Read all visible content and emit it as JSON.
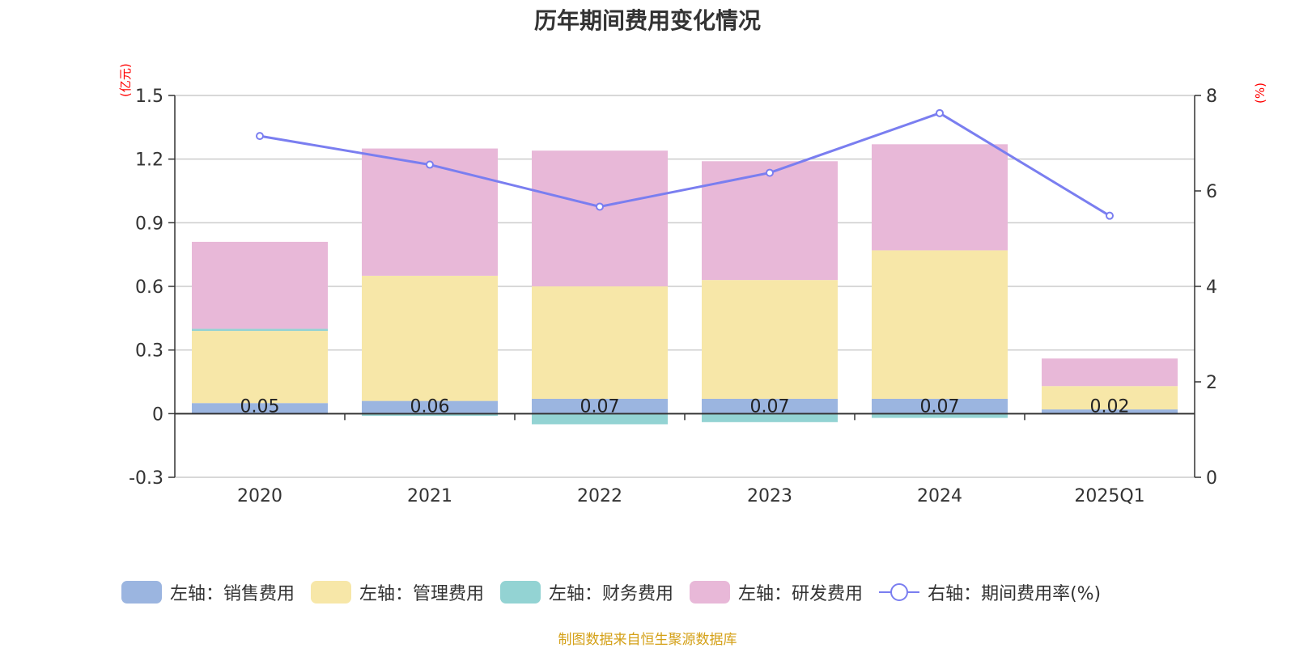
{
  "chart_data": {
    "type": "bar",
    "title": "历年期间费用变化情况",
    "left_axis_unit": "(亿元)",
    "right_axis_unit": "(%)",
    "categories": [
      "2020",
      "2021",
      "2022",
      "2023",
      "2024",
      "2025Q1"
    ],
    "left_ylim": [
      -0.3,
      1.5
    ],
    "left_ticks": [
      "-0.3",
      "0",
      "0.3",
      "0.6",
      "0.9",
      "1.2",
      "1.5"
    ],
    "right_ylim": [
      0,
      8
    ],
    "right_ticks": [
      "0",
      "2",
      "4",
      "6",
      "8"
    ],
    "series": [
      {
        "name": "左轴：销售费用",
        "type": "bar",
        "axis": "left",
        "color": "#9bb5e0",
        "values": [
          0.05,
          0.06,
          0.07,
          0.07,
          0.07,
          0.02
        ],
        "labels": [
          "0.05",
          "0.06",
          "0.07",
          "0.07",
          "0.07",
          "0.02"
        ]
      },
      {
        "name": "左轴：管理费用",
        "type": "bar",
        "axis": "left",
        "color": "#f7e7a8",
        "values": [
          0.34,
          0.59,
          0.53,
          0.56,
          0.7,
          0.11
        ]
      },
      {
        "name": "左轴：财务费用",
        "type": "bar",
        "axis": "left",
        "color": "#93d3d3",
        "values": [
          0.01,
          -0.01,
          -0.05,
          -0.04,
          -0.02,
          0.0
        ]
      },
      {
        "name": "左轴：研发费用",
        "type": "bar",
        "axis": "left",
        "color": "#e8b8d8",
        "values": [
          0.41,
          0.6,
          0.64,
          0.56,
          0.5,
          0.13
        ]
      },
      {
        "name": "右轴：期间费用率(%)",
        "type": "line",
        "axis": "right",
        "color": "#7a7ef0",
        "values": [
          7.15,
          6.55,
          5.67,
          6.38,
          7.63,
          5.48
        ]
      }
    ],
    "grid": true,
    "legend_position": "bottom"
  },
  "footer": "制图数据来自恒生聚源数据库"
}
